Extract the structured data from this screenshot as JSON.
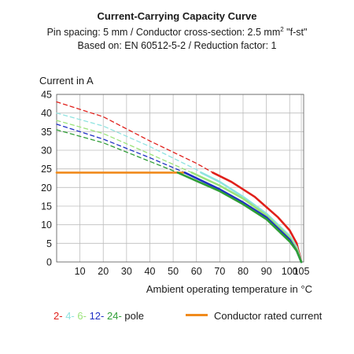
{
  "header": {
    "title": "Current-Carrying Capacity Curve",
    "subtitle_pre": "Pin spacing: 5 mm / Conductor cross-section: 2.5 mm",
    "subtitle_sup": "2",
    "subtitle_post": " \"f-st\"",
    "line3": "Based on: EN 60512-5-2 / Reduction factor: 1"
  },
  "legend": {
    "poles": [
      {
        "label": "2-",
        "color": "#e0201b"
      },
      {
        "label": "4-",
        "color": "#8fe3e0"
      },
      {
        "label": "6-",
        "color": "#9be37a"
      },
      {
        "label": "12-",
        "color": "#1f2fc4"
      },
      {
        "label": "24-",
        "color": "#2f9e36"
      }
    ],
    "poles_suffix": "pole",
    "rated_label": "Conductor rated current",
    "rated_color": "#f08a1c"
  },
  "chart_data": {
    "type": "line",
    "xlabel": "Ambient operating temperature in °C",
    "ylabel": "Current in A",
    "xlim": [
      0,
      106
    ],
    "ylim": [
      0,
      45
    ],
    "x_ticks": [
      10,
      20,
      30,
      40,
      50,
      60,
      70,
      80,
      90,
      100,
      105
    ],
    "y_ticks": [
      0,
      5,
      10,
      15,
      20,
      25,
      30,
      35,
      40,
      45
    ],
    "grid": true,
    "series": [
      {
        "name": "2-",
        "color": "#e0201b",
        "dashed": [
          [
            0,
            43
          ],
          [
            20,
            39
          ],
          [
            40,
            32.5
          ],
          [
            60,
            26.5
          ],
          [
            67,
            24
          ]
        ],
        "solid": [
          [
            67,
            24
          ],
          [
            75,
            21.5
          ],
          [
            85,
            17.5
          ],
          [
            95,
            12
          ],
          [
            100,
            8.5
          ],
          [
            103,
            5
          ],
          [
            105,
            0
          ]
        ]
      },
      {
        "name": "4-",
        "color": "#8fe3e0",
        "dashed": [
          [
            0,
            40
          ],
          [
            20,
            36.5
          ],
          [
            40,
            31
          ],
          [
            60,
            24.8
          ],
          [
            62,
            24
          ]
        ],
        "solid": [
          [
            62,
            24
          ],
          [
            70,
            21.5
          ],
          [
            80,
            17.5
          ],
          [
            90,
            13
          ],
          [
            100,
            7
          ],
          [
            103,
            4
          ],
          [
            105,
            0
          ]
        ]
      },
      {
        "name": "6-",
        "color": "#9be37a",
        "dashed": [
          [
            0,
            38
          ],
          [
            20,
            34.5
          ],
          [
            40,
            29
          ],
          [
            58,
            24
          ]
        ],
        "solid": [
          [
            58,
            24
          ],
          [
            70,
            20.5
          ],
          [
            80,
            17
          ],
          [
            90,
            12.5
          ],
          [
            100,
            6.5
          ],
          [
            103,
            3.5
          ],
          [
            105,
            0
          ]
        ]
      },
      {
        "name": "12-",
        "color": "#1f2fc4",
        "dashed": [
          [
            0,
            37
          ],
          [
            20,
            33
          ],
          [
            40,
            28
          ],
          [
            55,
            24
          ]
        ],
        "solid": [
          [
            55,
            24
          ],
          [
            70,
            19.5
          ],
          [
            80,
            16
          ],
          [
            90,
            12
          ],
          [
            100,
            6
          ],
          [
            103,
            3
          ],
          [
            105,
            0
          ]
        ]
      },
      {
        "name": "24-",
        "color": "#2f9e36",
        "dashed": [
          [
            0,
            35.5
          ],
          [
            20,
            32
          ],
          [
            40,
            27
          ],
          [
            52,
            24
          ]
        ],
        "solid": [
          [
            52,
            24
          ],
          [
            70,
            19
          ],
          [
            80,
            15.5
          ],
          [
            90,
            11.5
          ],
          [
            100,
            5.5
          ],
          [
            103,
            3
          ],
          [
            105,
            0
          ]
        ]
      },
      {
        "name": "Conductor rated current",
        "color": "#f08a1c",
        "solid": [
          [
            0,
            24
          ],
          [
            55,
            24
          ]
        ]
      }
    ]
  }
}
